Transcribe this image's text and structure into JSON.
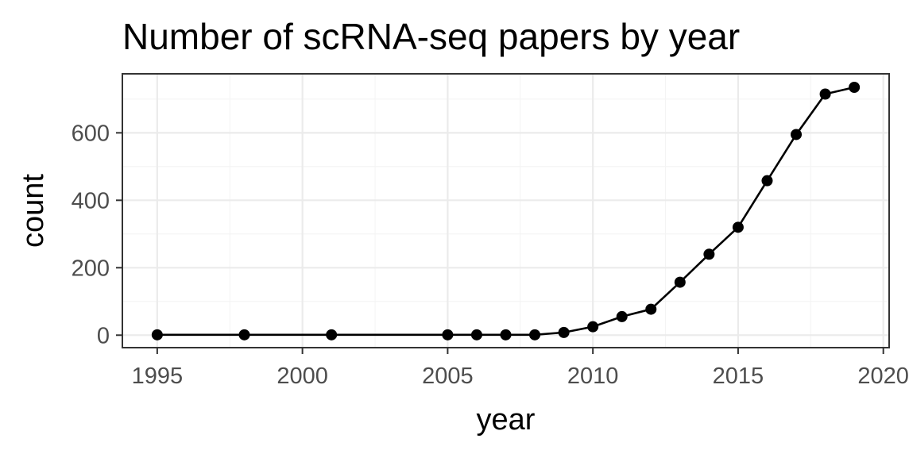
{
  "chart_data": {
    "type": "line",
    "title": "Number of scRNA-seq papers by year",
    "xlabel": "year",
    "ylabel": "count",
    "xlim": [
      1993.8,
      2020.2
    ],
    "ylim": [
      -37,
      775
    ],
    "x_ticks": [
      1995,
      2000,
      2005,
      2010,
      2015,
      2020
    ],
    "y_ticks": [
      0,
      200,
      400,
      600
    ],
    "grid": true,
    "points": true,
    "line_color": "#000000",
    "series": [
      {
        "x": [
          1995,
          1998,
          2001,
          2005,
          2006,
          2007,
          2008,
          2009,
          2010,
          2011,
          2012,
          2013,
          2014,
          2015,
          2016,
          2017,
          2018,
          2019
        ],
        "values": [
          1,
          1,
          1,
          1,
          1,
          1,
          1,
          8,
          25,
          55,
          77,
          157,
          240,
          320,
          458,
          595,
          715,
          735
        ]
      }
    ]
  }
}
